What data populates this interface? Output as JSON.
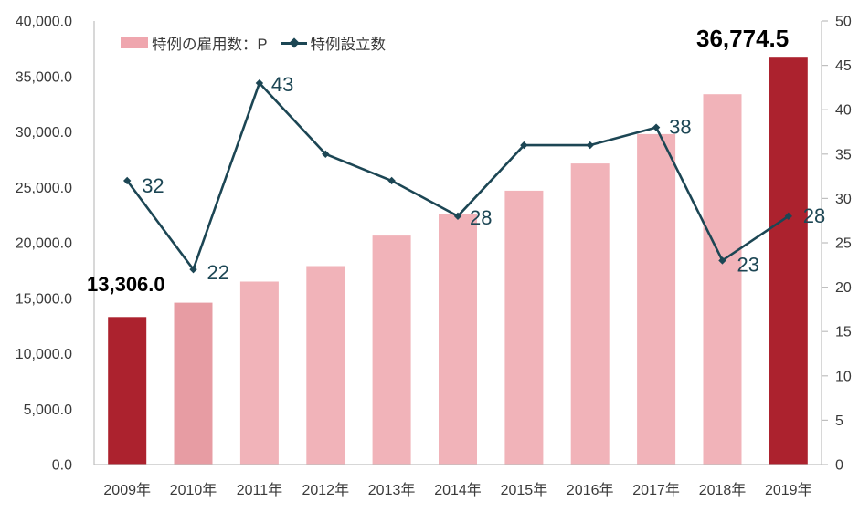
{
  "chart_data": {
    "type": "combo-bar-line",
    "title": "",
    "categories": [
      "2009年",
      "2010年",
      "2011年",
      "2012年",
      "2013年",
      "2014年",
      "2015年",
      "2016年",
      "2017年",
      "2018年",
      "2019年"
    ],
    "series": [
      {
        "name": "特例の雇用数：P",
        "type": "bar",
        "axis": "left",
        "values": [
          13306.0,
          14600,
          16500,
          17900,
          20650,
          22600,
          24700,
          27150,
          29800,
          33400,
          36774.5
        ],
        "bar_color_roles": [
          "dark",
          "mid",
          "light",
          "light",
          "light",
          "light",
          "light",
          "light",
          "light",
          "light",
          "dark"
        ]
      },
      {
        "name": "特例設立数",
        "type": "line",
        "axis": "right",
        "values": [
          32,
          22,
          43,
          35,
          32,
          28,
          36,
          36,
          38,
          23,
          28
        ],
        "point_labels": [
          "32",
          "22",
          "43",
          "",
          "",
          "28",
          "",
          "",
          "38",
          "23",
          "28"
        ]
      }
    ],
    "left_axis": {
      "min": 0,
      "max": 40000,
      "tick_step": 5000,
      "tick_labels": [
        "0.0",
        "5,000.0",
        "10,000.0",
        "15,000.0",
        "20,000.0",
        "25,000.0",
        "30,000.0",
        "35,000.0",
        "40,000.0"
      ]
    },
    "right_axis": {
      "min": 0,
      "max": 50,
      "tick_step": 5,
      "tick_labels": [
        "0",
        "5",
        "10",
        "15",
        "20",
        "25",
        "30",
        "35",
        "40",
        "45",
        "50"
      ]
    },
    "annotations": [
      {
        "category": "2009年",
        "text": "13,306.0"
      },
      {
        "category": "2019年",
        "text": "36,774.5"
      }
    ],
    "legend_position": "top-left-inside",
    "grid": false
  },
  "colors": {
    "bar_dark": "#AC222E",
    "bar_mid": "#E79CA3",
    "bar_light": "#F1B3B9",
    "legend_swatch": "#EFA6AE",
    "line": "#1C4654",
    "axis_line": "#BFBFBF",
    "axis_text": "#3A3A3A",
    "annotation_text": "#000000",
    "background": "#FFFFFF"
  }
}
